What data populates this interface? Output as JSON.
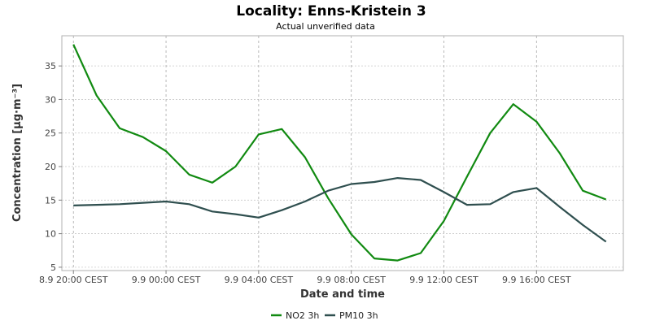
{
  "chart_data": {
    "type": "line",
    "title": "Locality: Enns-Kristein 3",
    "subtitle": "Actual unverified data",
    "xlabel": "Date and time",
    "ylabel": "Concentration [µg·m⁻³]",
    "x_tick_labels": [
      "8.9 20:00 CEST",
      "9.9 00:00 CEST",
      "9.9 04:00 CEST",
      "9.9 08:00 CEST",
      "9.9 12:00 CEST",
      "9.9 16:00 CEST"
    ],
    "x_hours": [
      0,
      2,
      4,
      6,
      8,
      10,
      12,
      14,
      16,
      18,
      20,
      22,
      24,
      26,
      28,
      30,
      32,
      34,
      36,
      38,
      40,
      42,
      44,
      46
    ],
    "xlim_hours": [
      -1,
      47.5
    ],
    "ylim": [
      4.5,
      39.5
    ],
    "yticks": [
      5,
      10,
      15,
      20,
      25,
      30,
      35
    ],
    "grid": true,
    "legend_position": "bottom-center",
    "series": [
      {
        "name": "NO2 3h",
        "color": "#118a11",
        "values": [
          38.2,
          30.6,
          25.7,
          24.4,
          22.3,
          18.8,
          17.6,
          20.0,
          24.8,
          25.6,
          21.4,
          15.3,
          9.9,
          6.3,
          6.0,
          7.1,
          11.9,
          18.5,
          25.0,
          29.3,
          26.7,
          22.0,
          16.4,
          15.1
        ]
      },
      {
        "name": "PM10 3h",
        "color": "#2f4f4f",
        "values": [
          14.2,
          14.3,
          14.4,
          14.6,
          14.8,
          14.4,
          13.3,
          12.9,
          12.4,
          13.5,
          14.8,
          16.4,
          17.4,
          17.7,
          18.3,
          18.0,
          16.2,
          14.3,
          14.4,
          16.2,
          16.8,
          14.0,
          11.3,
          8.8
        ]
      }
    ]
  }
}
